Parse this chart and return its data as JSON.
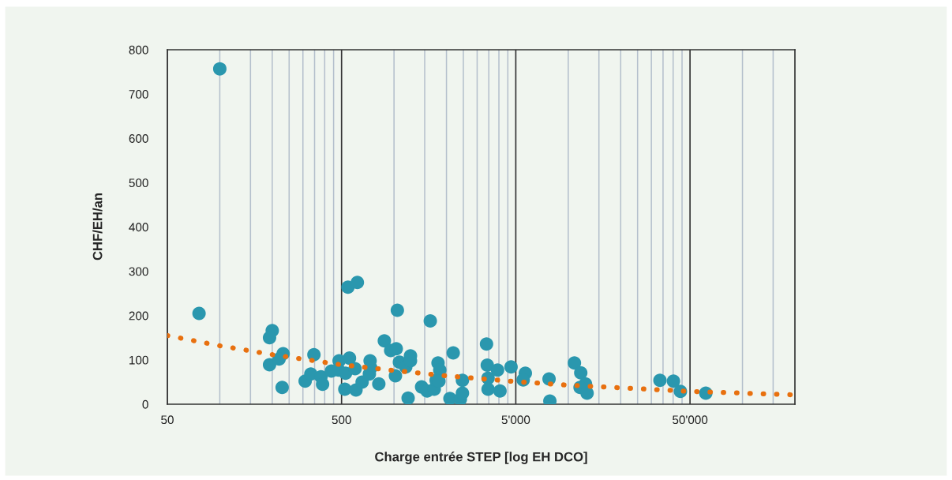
{
  "chart_data": {
    "type": "scatter",
    "xlabel": "Charge entrée STEP [log EH DCO]",
    "ylabel": "CHF/EH/an",
    "log": "x",
    "grid": "x",
    "legend": false,
    "xlim": [
      50,
      200000
    ],
    "ylim": [
      0,
      800
    ],
    "xticks": [
      {
        "value": 50,
        "label": "50"
      },
      {
        "value": 100,
        "label": null
      },
      {
        "value": 150,
        "label": null
      },
      {
        "value": 200,
        "label": null
      },
      {
        "value": 250,
        "label": null
      },
      {
        "value": 300,
        "label": null
      },
      {
        "value": 350,
        "label": null
      },
      {
        "value": 400,
        "label": null
      },
      {
        "value": 450,
        "label": null
      },
      {
        "value": 500,
        "label": "500"
      },
      {
        "value": 1000,
        "label": null
      },
      {
        "value": 1500,
        "label": null
      },
      {
        "value": 2000,
        "label": null
      },
      {
        "value": 2500,
        "label": null
      },
      {
        "value": 3000,
        "label": null
      },
      {
        "value": 3500,
        "label": null
      },
      {
        "value": 4000,
        "label": null
      },
      {
        "value": 4500,
        "label": null
      },
      {
        "value": 5000,
        "label": "5'000"
      },
      {
        "value": 10000,
        "label": null
      },
      {
        "value": 15000,
        "label": null
      },
      {
        "value": 20000,
        "label": null
      },
      {
        "value": 25000,
        "label": null
      },
      {
        "value": 30000,
        "label": null
      },
      {
        "value": 35000,
        "label": null
      },
      {
        "value": 40000,
        "label": null
      },
      {
        "value": 45000,
        "label": null
      },
      {
        "value": 50000,
        "label": "50'000"
      },
      {
        "value": 100000,
        "label": null
      },
      {
        "value": 150000,
        "label": null
      }
    ],
    "yticks": [
      0,
      100,
      200,
      300,
      400,
      500,
      600,
      700,
      800
    ],
    "series": [
      {
        "color": "#2a97ae",
        "marker": "circle",
        "x": [
          100,
          76,
          200,
          193,
          193,
          231,
          219,
          228,
          309,
          333,
          347,
          381,
          389,
          437,
          484,
          480,
          527,
          522,
          544,
          616,
          555,
          598,
          605,
          656,
          729,
          736,
          722,
          818,
          880,
          957,
          1030,
          1045,
          1074,
          1019,
          1168,
          1243,
          1243,
          1205,
          1440,
          1549,
          1615,
          1702,
          1745,
          1789,
          1831,
          1810,
          2187,
          2094,
          2403,
          2470,
          2470,
          3396,
          3430,
          3467,
          3467,
          3929,
          4058,
          4697,
          5672,
          5515,
          7761,
          7845,
          10850,
          11800,
          12560,
          11690,
          12830,
          33600,
          40170,
          44040,
          61600
        ],
        "values": [
          757,
          205,
          166,
          150,
          89,
          114,
          102,
          38,
          52,
          68,
          112,
          62,
          45,
          75,
          98,
          77,
          70,
          34,
          264,
          275,
          104,
          80,
          32,
          50,
          98,
          82,
          68,
          46,
          143,
          121,
          125,
          212,
          95,
          64,
          84,
          109,
          98,
          14,
          39,
          30,
          188,
          34,
          54,
          93,
          77,
          52,
          116,
          13,
          11,
          25,
          54,
          136,
          88,
          59,
          34,
          77,
          30,
          84,
          70,
          55,
          57,
          7,
          93,
          71,
          46,
          38,
          25,
          54,
          52,
          29,
          25
        ]
      },
      {
        "type": "line",
        "color": "#e8700f",
        "line_style": "dotted",
        "x": [
          50,
          100,
          200,
          500,
          1000,
          2000,
          5000,
          10000,
          20000,
          50000,
          100000,
          200000
        ],
        "values": [
          155,
          132,
          112,
          89,
          76,
          64,
          51,
          43,
          37,
          29,
          25,
          21
        ]
      }
    ]
  }
}
